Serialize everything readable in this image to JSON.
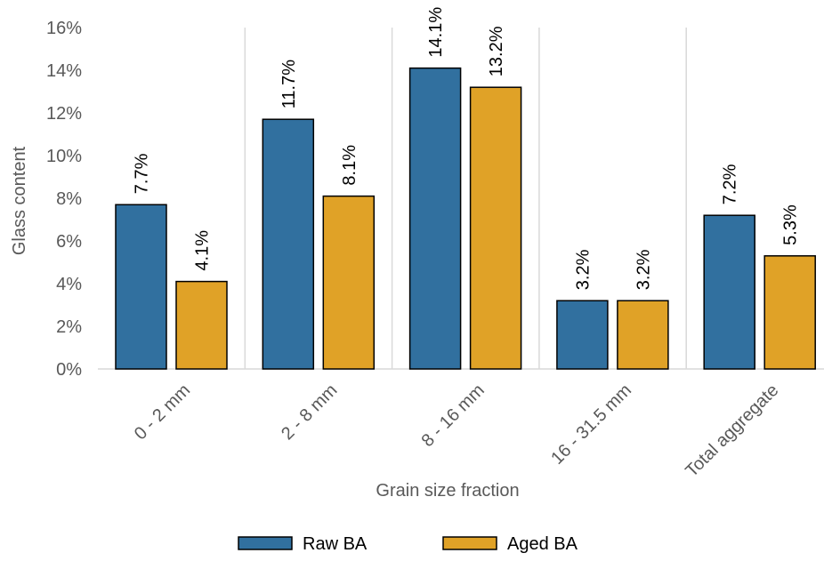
{
  "chart_data": {
    "type": "bar",
    "xlabel": "Grain size fraction",
    "ylabel": "Glass content",
    "ylim": [
      0,
      16
    ],
    "ytick_step": 2,
    "ytick_format": "percent",
    "grid": "vertical separators between categories",
    "legend": "bottom",
    "categories": [
      "0 - 2 mm",
      "2 - 8 mm",
      "8 - 16 mm",
      "16 - 31.5 mm",
      "Total aggregate"
    ],
    "series": [
      {
        "name": "Raw BA",
        "color": "#31709f",
        "values": [
          7.7,
          11.7,
          14.1,
          3.2,
          7.2
        ],
        "labels": [
          "7.7%",
          "11.7%",
          "14.1%",
          "3.2%",
          "7.2%"
        ]
      },
      {
        "name": "Aged BA",
        "color": "#e0a227",
        "values": [
          4.1,
          8.1,
          13.2,
          3.2,
          5.3
        ],
        "labels": [
          "4.1%",
          "8.1%",
          "13.2%",
          "3.2%",
          "5.3%"
        ]
      }
    ]
  }
}
